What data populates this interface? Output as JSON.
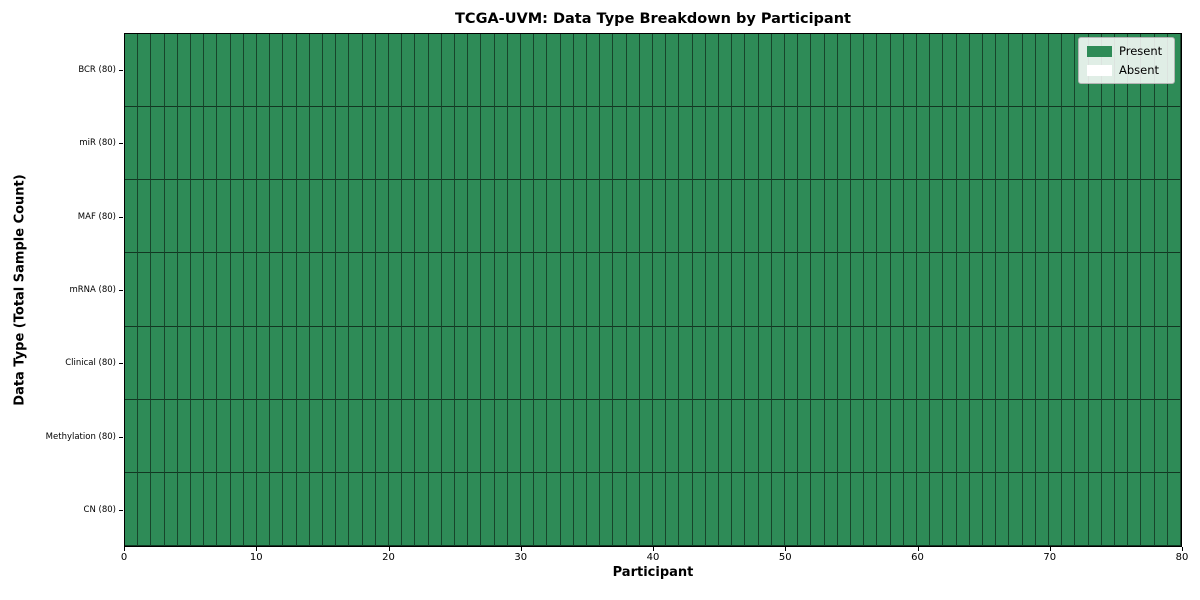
{
  "chart_data": {
    "type": "heatmap",
    "title": "TCGA-UVM: Data Type Breakdown by Participant",
    "xlabel": "Participant",
    "ylabel": "Data Type (Total Sample Count)",
    "x_ticks": [
      0,
      10,
      20,
      30,
      40,
      50,
      60,
      70,
      80
    ],
    "xlim": [
      0,
      80
    ],
    "n_participants": 80,
    "rows": [
      {
        "label": "BCR (80)",
        "present_count": 80,
        "absent_count": 0
      },
      {
        "label": "miR (80)",
        "present_count": 80,
        "absent_count": 0
      },
      {
        "label": "MAF (80)",
        "present_count": 80,
        "absent_count": 0
      },
      {
        "label": "mRNA (80)",
        "present_count": 80,
        "absent_count": 0
      },
      {
        "label": "Clinical (80)",
        "present_count": 80,
        "absent_count": 0
      },
      {
        "label": "Methylation (80)",
        "present_count": 80,
        "absent_count": 0
      },
      {
        "label": "CN (80)",
        "present_count": 80,
        "absent_count": 0
      }
    ],
    "legend": [
      {
        "label": "Present",
        "color": "#2e8b57"
      },
      {
        "label": "Absent",
        "color": "#ffffff"
      }
    ],
    "colors": {
      "present": "#2e8b57",
      "absent": "#ffffff",
      "cell_edge": "#000000",
      "axes_edge": "#000000",
      "background": "#ffffff"
    },
    "layout": {
      "grid_on": false,
      "legend_position": "upper right"
    }
  }
}
